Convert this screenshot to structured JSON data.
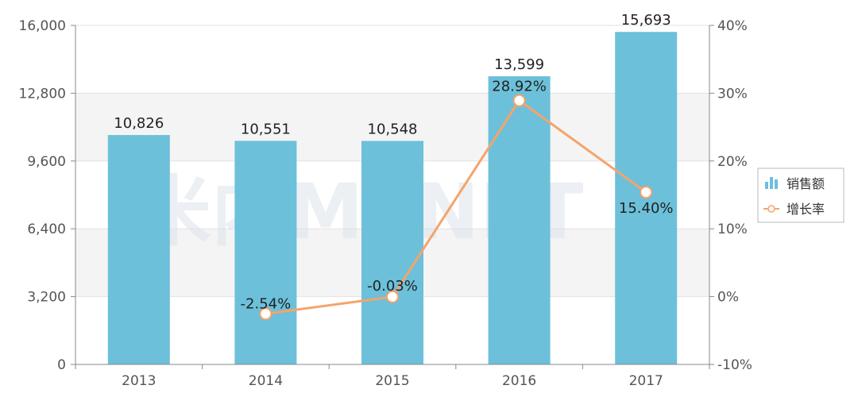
{
  "watermark": "米内MENET",
  "chart_data": {
    "type": "bar",
    "categories": [
      "2013",
      "2014",
      "2015",
      "2016",
      "2017"
    ],
    "series": [
      {
        "name": "销售额",
        "type": "bar",
        "axis": "left",
        "values": [
          10826,
          10551,
          10548,
          13599,
          15693
        ],
        "labels": [
          "10,826",
          "10,551",
          "10,548",
          "13,599",
          "15,693"
        ],
        "color": "#6cc0da"
      },
      {
        "name": "增长率",
        "type": "line",
        "axis": "right",
        "values": [
          null,
          -2.54,
          -0.03,
          28.92,
          15.4
        ],
        "labels": [
          null,
          "-2.54%",
          "-0.03%",
          "28.92%",
          "15.40%"
        ],
        "color": "#f4a46b"
      }
    ],
    "y_left": {
      "range": [
        0,
        16000
      ],
      "ticks": [
        0,
        3200,
        6400,
        9600,
        12800,
        16000
      ],
      "tick_labels": [
        "0",
        "3,200",
        "6,400",
        "9,600",
        "12,800",
        "16,000"
      ]
    },
    "y_right": {
      "range": [
        -10,
        40
      ],
      "ticks": [
        -10,
        0,
        10,
        20,
        30,
        40
      ],
      "tick_labels": [
        "-10%",
        "0%",
        "10%",
        "20%",
        "30%",
        "40%"
      ]
    },
    "legend": {
      "placement": "right",
      "entries": [
        "销售额",
        "增长率"
      ]
    },
    "grid": "horizontal bands"
  }
}
